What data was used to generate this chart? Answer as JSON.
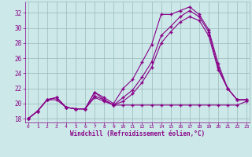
{
  "title": "",
  "xlabel": "Windchill (Refroidissement éolien,°C)",
  "background_color": "#cce8e8",
  "line_color": "#880088",
  "grid_color": "#99bbbb",
  "x_ticks": [
    0,
    1,
    2,
    3,
    4,
    5,
    6,
    7,
    8,
    9,
    10,
    11,
    12,
    13,
    14,
    15,
    16,
    17,
    18,
    19,
    20,
    21,
    22,
    23
  ],
  "y_ticks": [
    18,
    20,
    22,
    24,
    26,
    28,
    30,
    32
  ],
  "ylim": [
    17.5,
    33.5
  ],
  "xlim": [
    -0.3,
    23.3
  ],
  "line1_x": [
    0,
    1,
    2,
    3,
    4,
    5,
    6,
    7,
    8,
    9,
    10,
    11,
    12,
    13,
    14,
    15,
    16,
    17,
    18,
    19,
    20,
    21,
    22,
    23
  ],
  "line1_y": [
    18,
    19.0,
    20.5,
    20.8,
    19.5,
    19.3,
    19.3,
    21.5,
    20.5,
    19.8,
    19.8,
    19.8,
    19.8,
    19.8,
    19.8,
    19.8,
    19.8,
    19.8,
    19.8,
    19.8,
    19.8,
    19.8,
    19.8,
    20.3
  ],
  "line2_x": [
    0,
    1,
    2,
    3,
    4,
    5,
    6,
    7,
    8,
    9,
    10,
    11,
    12,
    13,
    14,
    15,
    16,
    17,
    18,
    19,
    20,
    21,
    22,
    23
  ],
  "line2_y": [
    18,
    19.0,
    20.5,
    20.8,
    19.5,
    19.3,
    19.3,
    21.5,
    20.8,
    20.0,
    22.0,
    23.2,
    25.5,
    27.8,
    31.8,
    31.8,
    32.3,
    32.8,
    31.8,
    29.8,
    25.3,
    22.0,
    20.5,
    20.5
  ],
  "line3_x": [
    0,
    1,
    2,
    3,
    4,
    5,
    6,
    7,
    8,
    9,
    10,
    11,
    12,
    13,
    14,
    15,
    16,
    17,
    18,
    19,
    20,
    21,
    22,
    23
  ],
  "line3_y": [
    18,
    19.0,
    20.5,
    20.8,
    19.5,
    19.3,
    19.3,
    21.0,
    20.5,
    19.8,
    20.8,
    21.8,
    23.5,
    25.5,
    29.0,
    30.2,
    31.5,
    32.3,
    31.5,
    29.5,
    24.8,
    22.0,
    20.5,
    20.5
  ],
  "line4_x": [
    0,
    1,
    2,
    3,
    4,
    5,
    6,
    7,
    8,
    9,
    10,
    11,
    12,
    13,
    14,
    15,
    16,
    17,
    18,
    19,
    20,
    21,
    22,
    23
  ],
  "line4_y": [
    18,
    19.0,
    20.5,
    20.5,
    19.5,
    19.3,
    19.3,
    20.8,
    20.3,
    19.8,
    20.3,
    21.3,
    22.8,
    24.8,
    28.0,
    29.5,
    30.8,
    31.5,
    31.0,
    29.0,
    24.5,
    22.0,
    20.5,
    20.5
  ]
}
